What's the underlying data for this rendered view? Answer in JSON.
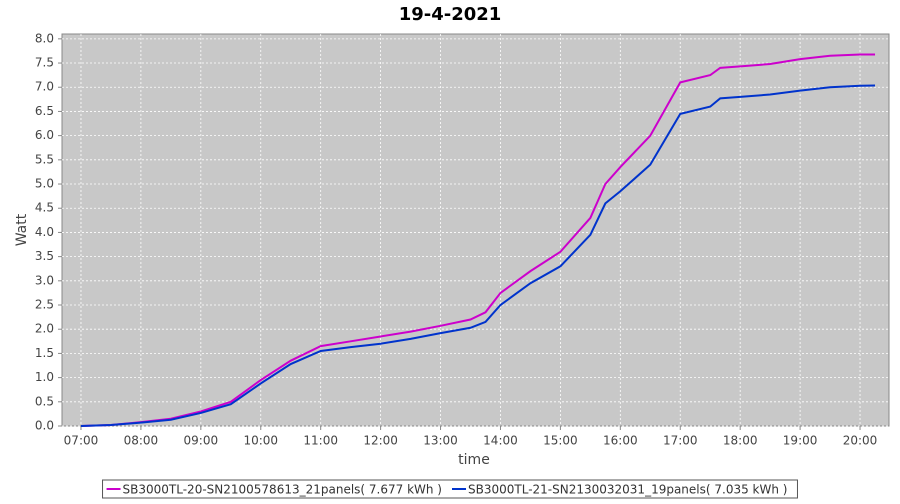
{
  "chart_data": {
    "type": "line",
    "title": "19-4-2021",
    "x_label": "time",
    "y_label": "Watt",
    "x": [
      "07:00",
      "07:30",
      "08:00",
      "08:30",
      "09:00",
      "09:30",
      "10:00",
      "10:30",
      "11:00",
      "11:30",
      "12:00",
      "12:30",
      "13:00",
      "13:30",
      "13:45",
      "14:00",
      "14:30",
      "15:00",
      "15:30",
      "15:45",
      "16:00",
      "16:30",
      "17:00",
      "17:30",
      "17:40",
      "18:00",
      "18:30",
      "19:00",
      "19:30",
      "20:00",
      "20:15"
    ],
    "series": [
      {
        "name": "SB3000TL-20-SN2100578613_21panels( 7.677 kWh )",
        "color": "#cc00cc",
        "values": [
          0,
          0.02,
          0.08,
          0.15,
          0.3,
          0.5,
          0.95,
          1.35,
          1.65,
          1.75,
          1.85,
          1.95,
          2.07,
          2.2,
          2.35,
          2.75,
          3.2,
          3.6,
          4.3,
          5.0,
          5.35,
          6.0,
          7.1,
          7.25,
          7.4,
          7.43,
          7.48,
          7.58,
          7.65,
          7.677,
          7.677
        ]
      },
      {
        "name": "SB3000TL-21-SN2130032031_19panels( 7.035 kWh )",
        "color": "#0033cc",
        "values": [
          0,
          0.02,
          0.07,
          0.13,
          0.27,
          0.45,
          0.88,
          1.28,
          1.55,
          1.63,
          1.7,
          1.8,
          1.92,
          2.03,
          2.15,
          2.5,
          2.95,
          3.3,
          3.95,
          4.6,
          4.85,
          5.4,
          6.45,
          6.6,
          6.77,
          6.8,
          6.85,
          6.93,
          7.0,
          7.03,
          7.035
        ]
      }
    ],
    "xlim": [
      "06:41",
      "20:29"
    ],
    "xticks": [
      "07:00",
      "08:00",
      "09:00",
      "10:00",
      "11:00",
      "12:00",
      "13:00",
      "14:00",
      "15:00",
      "16:00",
      "17:00",
      "18:00",
      "19:00",
      "20:00"
    ],
    "ylim": [
      0,
      8.1
    ],
    "yticks": [
      {
        "value": 0,
        "label": "0.0"
      },
      0.5,
      {
        "value": 1,
        "label": "1.0"
      },
      1.5,
      {
        "value": 2,
        "label": "2.0"
      },
      2.5,
      {
        "value": 3,
        "label": "3.0"
      },
      3.5,
      {
        "value": 4,
        "label": "4.0"
      },
      4.5,
      {
        "value": 5,
        "label": "5.0"
      },
      5.5,
      {
        "value": 6,
        "label": "6.0"
      },
      6.5,
      {
        "value": 7,
        "label": "7.0"
      },
      7.5,
      {
        "value": 8,
        "label": "8.0"
      }
    ],
    "grid": true,
    "legend": "bottom"
  }
}
